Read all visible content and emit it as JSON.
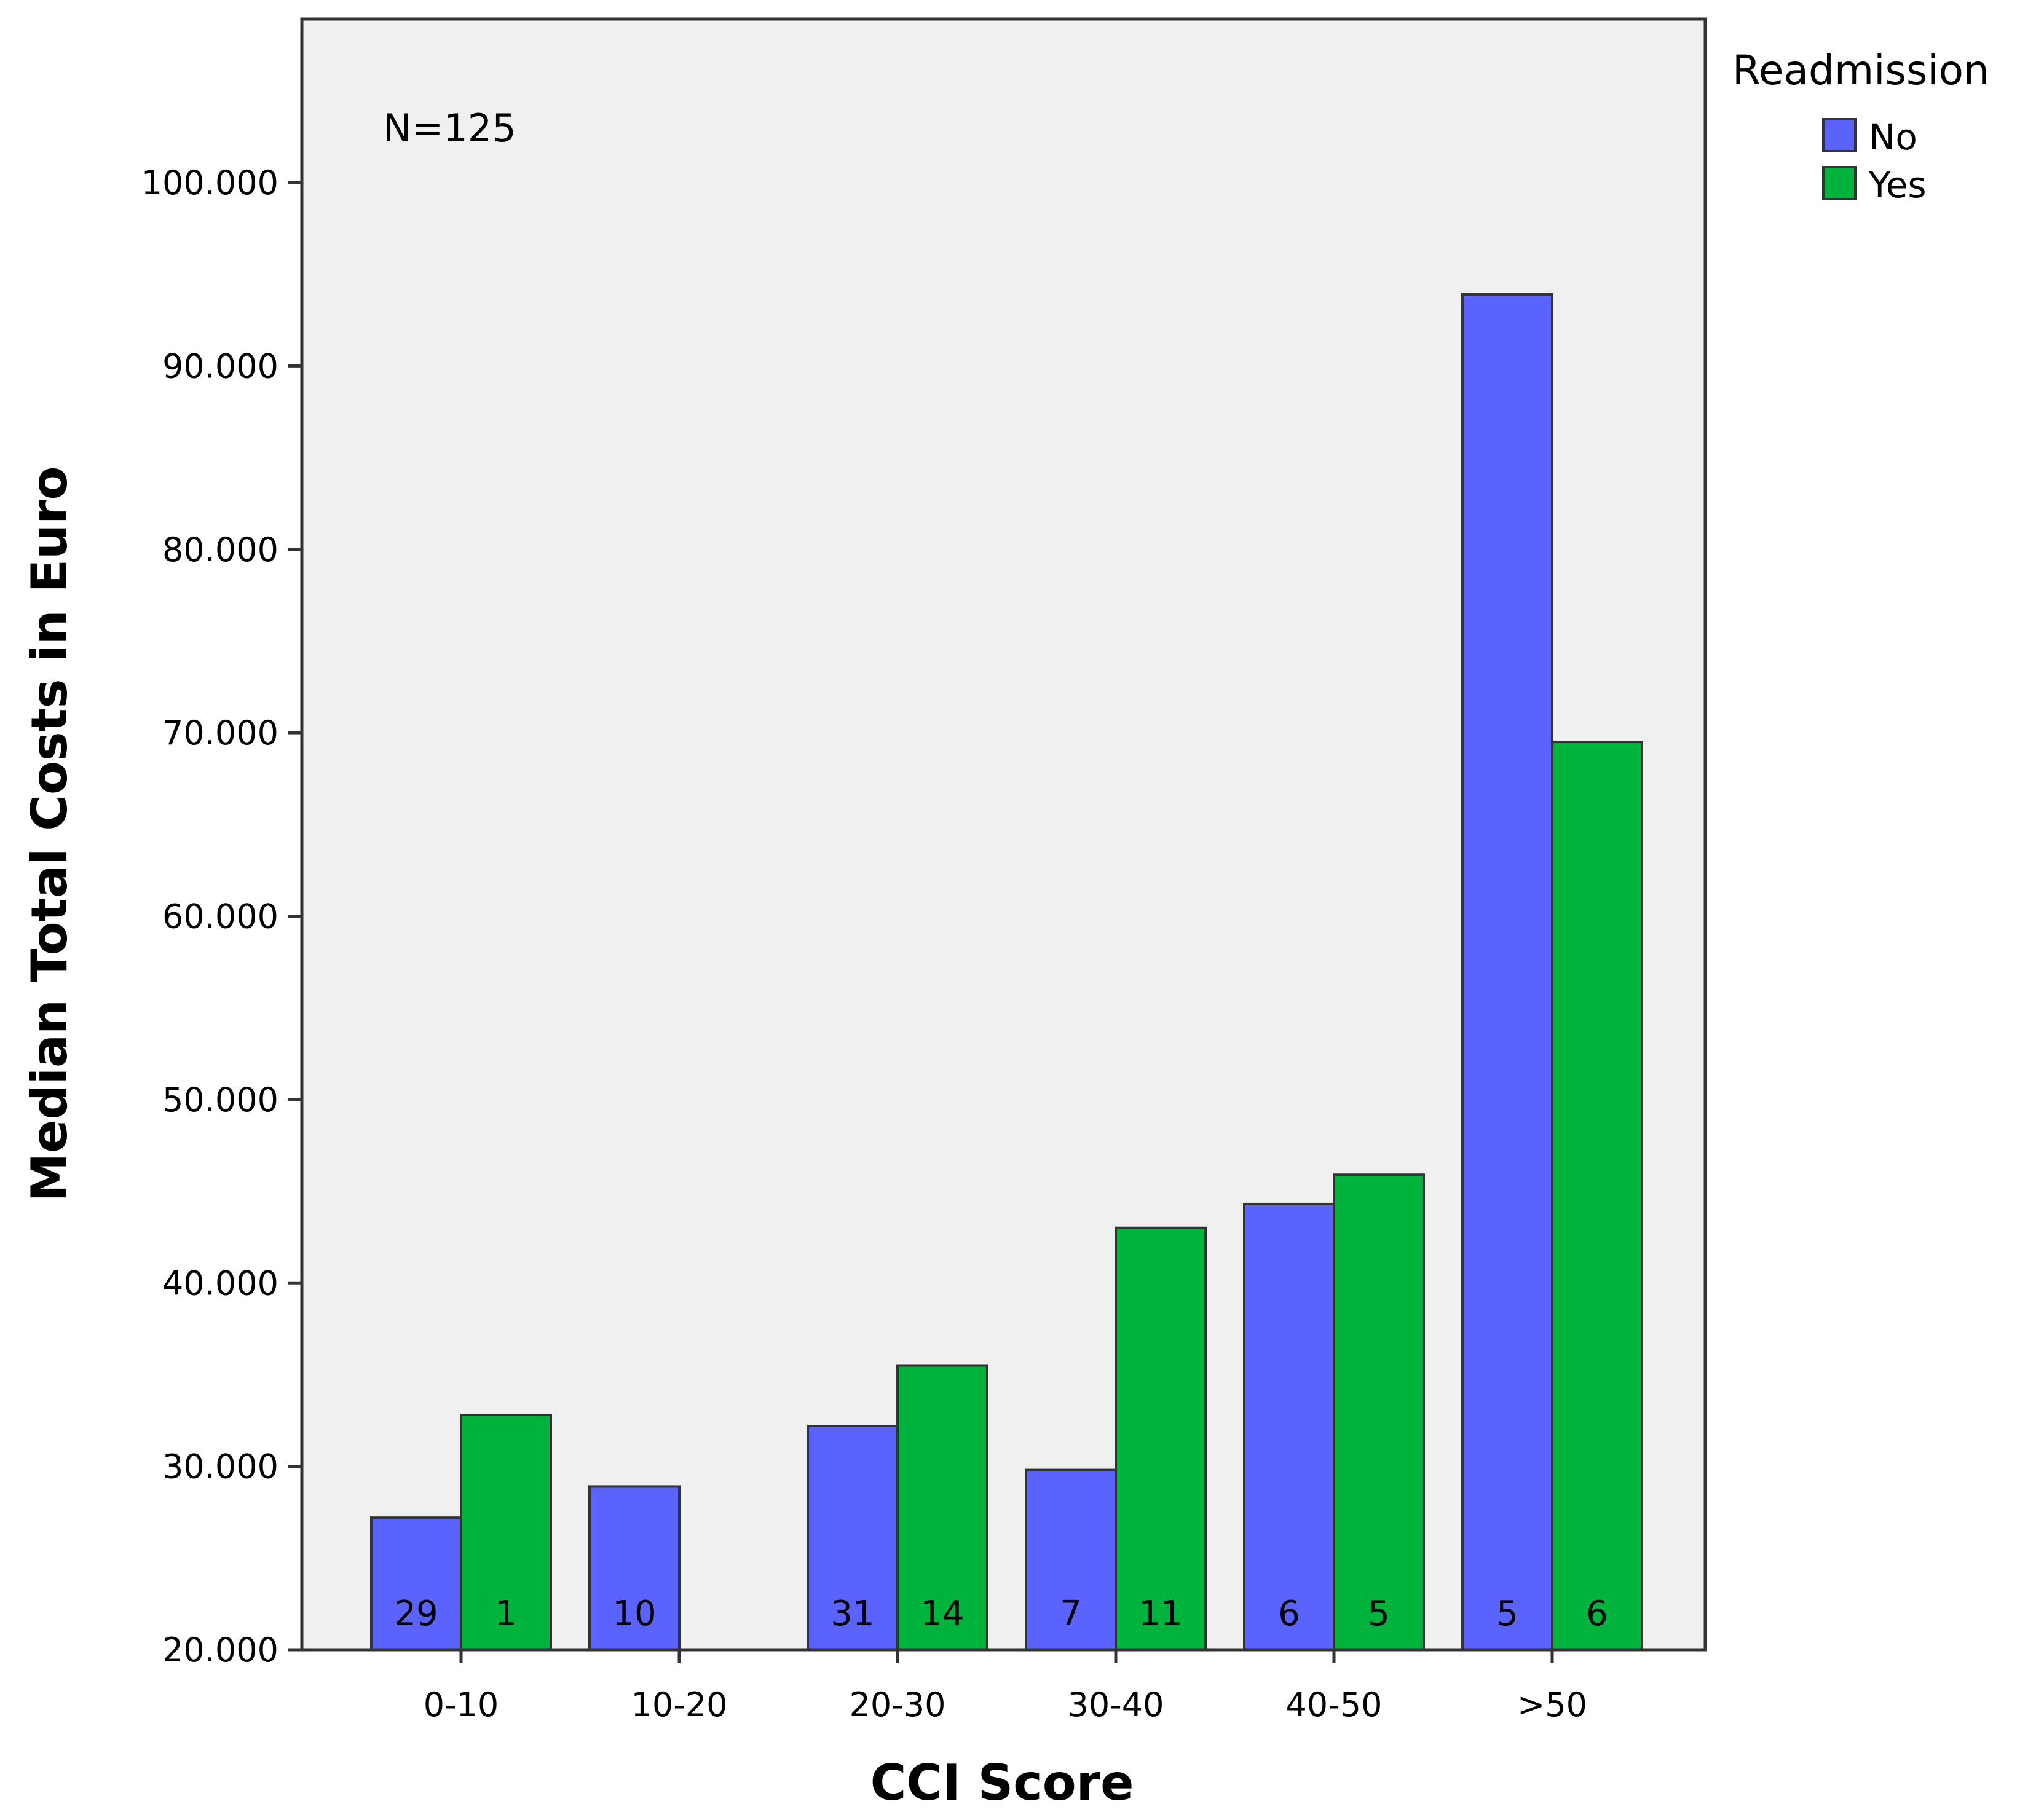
{
  "chart_data": {
    "type": "bar",
    "title": "",
    "xlabel": "CCI Score",
    "ylabel": "Median Total Costs in Euro",
    "ylim": [
      20000,
      109000
    ],
    "yticks": [
      20000,
      30000,
      40000,
      50000,
      60000,
      70000,
      80000,
      90000,
      100000
    ],
    "ytick_labels": [
      "20.000",
      "30.000",
      "40.000",
      "50.000",
      "60.000",
      "70.000",
      "80.000",
      "90.000",
      "100.000"
    ],
    "categories": [
      "0-10",
      "10-20",
      "20-30",
      "30-40",
      "40-50",
      ">50"
    ],
    "legend_title": "Readmission",
    "legend_position": "top-right",
    "annotation": "N=125",
    "grid": false,
    "series": [
      {
        "name": "No",
        "color": "#5b63ff",
        "values": [
          27200,
          28900,
          32200,
          29800,
          44300,
          93900
        ],
        "counts": [
          "29",
          "10",
          "31",
          "7",
          "6",
          "5"
        ]
      },
      {
        "name": "Yes",
        "color": "#00b33c",
        "values": [
          32800,
          null,
          35500,
          43000,
          45900,
          69500
        ],
        "counts": [
          "1",
          null,
          "14",
          "11",
          "5",
          "6"
        ]
      }
    ]
  }
}
